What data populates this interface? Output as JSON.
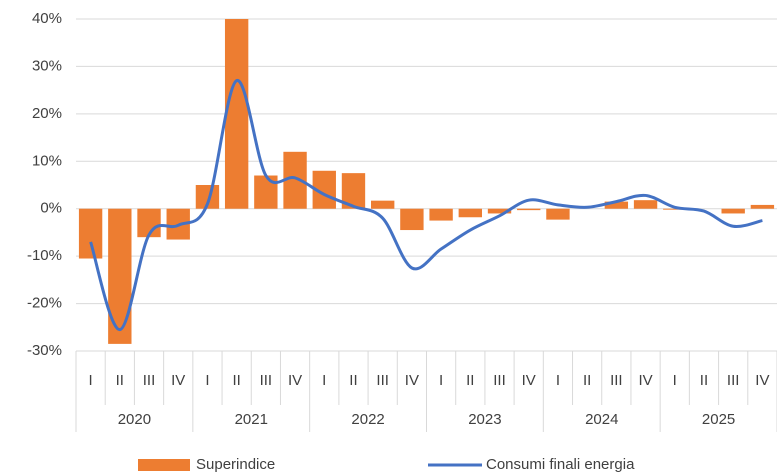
{
  "chart_data": {
    "type": "bar_line",
    "categories": [
      "I",
      "II",
      "III",
      "IV",
      "I",
      "II",
      "III",
      "IV",
      "I",
      "II",
      "III",
      "IV",
      "I",
      "II",
      "III",
      "IV",
      "I",
      "II",
      "III",
      "IV",
      "I",
      "II",
      "III",
      "IV"
    ],
    "years": [
      "2020",
      "2021",
      "2022",
      "2023",
      "2024",
      "2025"
    ],
    "ylim": [
      -30,
      40
    ],
    "yticks": [
      {
        "value": 40,
        "label": "40%"
      },
      {
        "value": 30,
        "label": "30%"
      },
      {
        "value": 20,
        "label": "20%"
      },
      {
        "value": 10,
        "label": "10%"
      },
      {
        "value": 0,
        "label": "0%"
      },
      {
        "value": -10,
        "label": "-10%"
      },
      {
        "value": -20,
        "label": "-20%"
      },
      {
        "value": -30,
        "label": "-30%"
      }
    ],
    "grid": true,
    "series": [
      {
        "name": "Superindice",
        "type": "bar",
        "color": "#ed7d31",
        "values": [
          -10.5,
          -28.5,
          -6,
          -6.5,
          5,
          40,
          7,
          12,
          8,
          7.5,
          1.7,
          -4.5,
          -2.5,
          -1.8,
          -1,
          -0.3,
          -2.3,
          0,
          1.5,
          1.8,
          -0.2,
          0,
          -1,
          0.8
        ]
      },
      {
        "name": "Consumi finali energia",
        "type": "line",
        "color": "#4472c4",
        "values": [
          -7,
          -25.5,
          -5.5,
          -3.5,
          1,
          27,
          7,
          6.5,
          3,
          0.5,
          -2,
          -12.5,
          -8.5,
          -4.5,
          -1.5,
          1.8,
          0.8,
          0.3,
          1.5,
          2.8,
          0.3,
          -0.5,
          -3.7,
          -2.5
        ]
      }
    ],
    "legend": "bottom"
  }
}
